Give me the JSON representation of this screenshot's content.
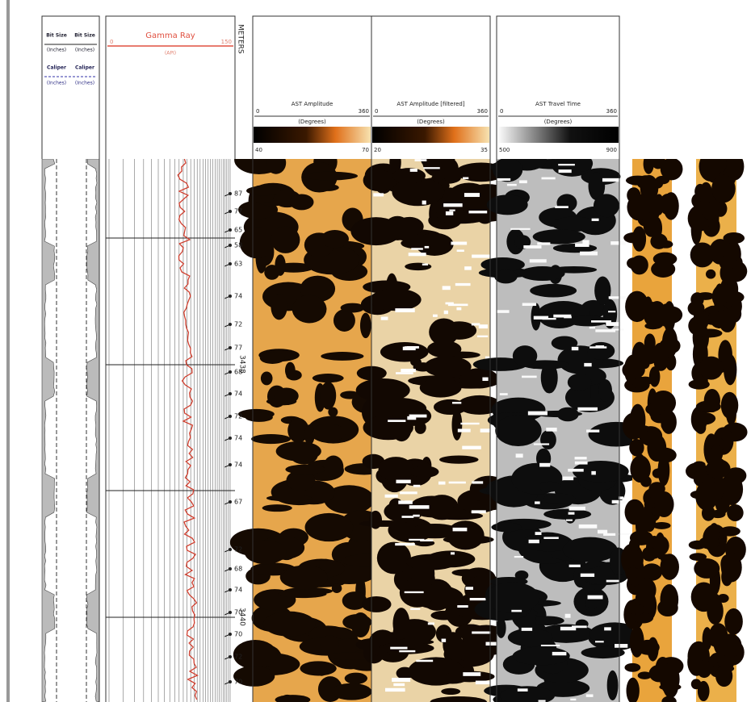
{
  "track1": {
    "bit_size": [
      "Bit Size",
      "Bit Size"
    ],
    "caliper": [
      "Caliper",
      "Caliper"
    ],
    "units": [
      "(Inches)",
      "(Inches)",
      "(Inches)",
      "(Inches)"
    ]
  },
  "gamma": {
    "title": "Gamma Ray",
    "min": "0",
    "max": "150",
    "units": "(API)"
  },
  "depth": {
    "title": "METERS",
    "labels": [
      "3438",
      "3440"
    ]
  },
  "images": [
    {
      "title": "AST Amplitude",
      "min": "0",
      "max": "360",
      "units": "(Degrees)",
      "low": "40",
      "high": "70"
    },
    {
      "title": "AST Amplitude [filtered]",
      "min": "0",
      "max": "360",
      "units": "(Degrees)",
      "low": "20",
      "high": "35"
    },
    {
      "title": "AST Travel Time",
      "min": "0",
      "max": "360",
      "units": "(Degrees)",
      "low": "500",
      "high": "900"
    }
  ],
  "tadpoles": [
    "87",
    "77",
    "65",
    "58",
    "63",
    "74",
    "72",
    "77",
    "68",
    "74",
    "72",
    "74",
    "74",
    "67",
    "72",
    "68",
    "74",
    "70",
    "70",
    "72",
    "70"
  ]
}
